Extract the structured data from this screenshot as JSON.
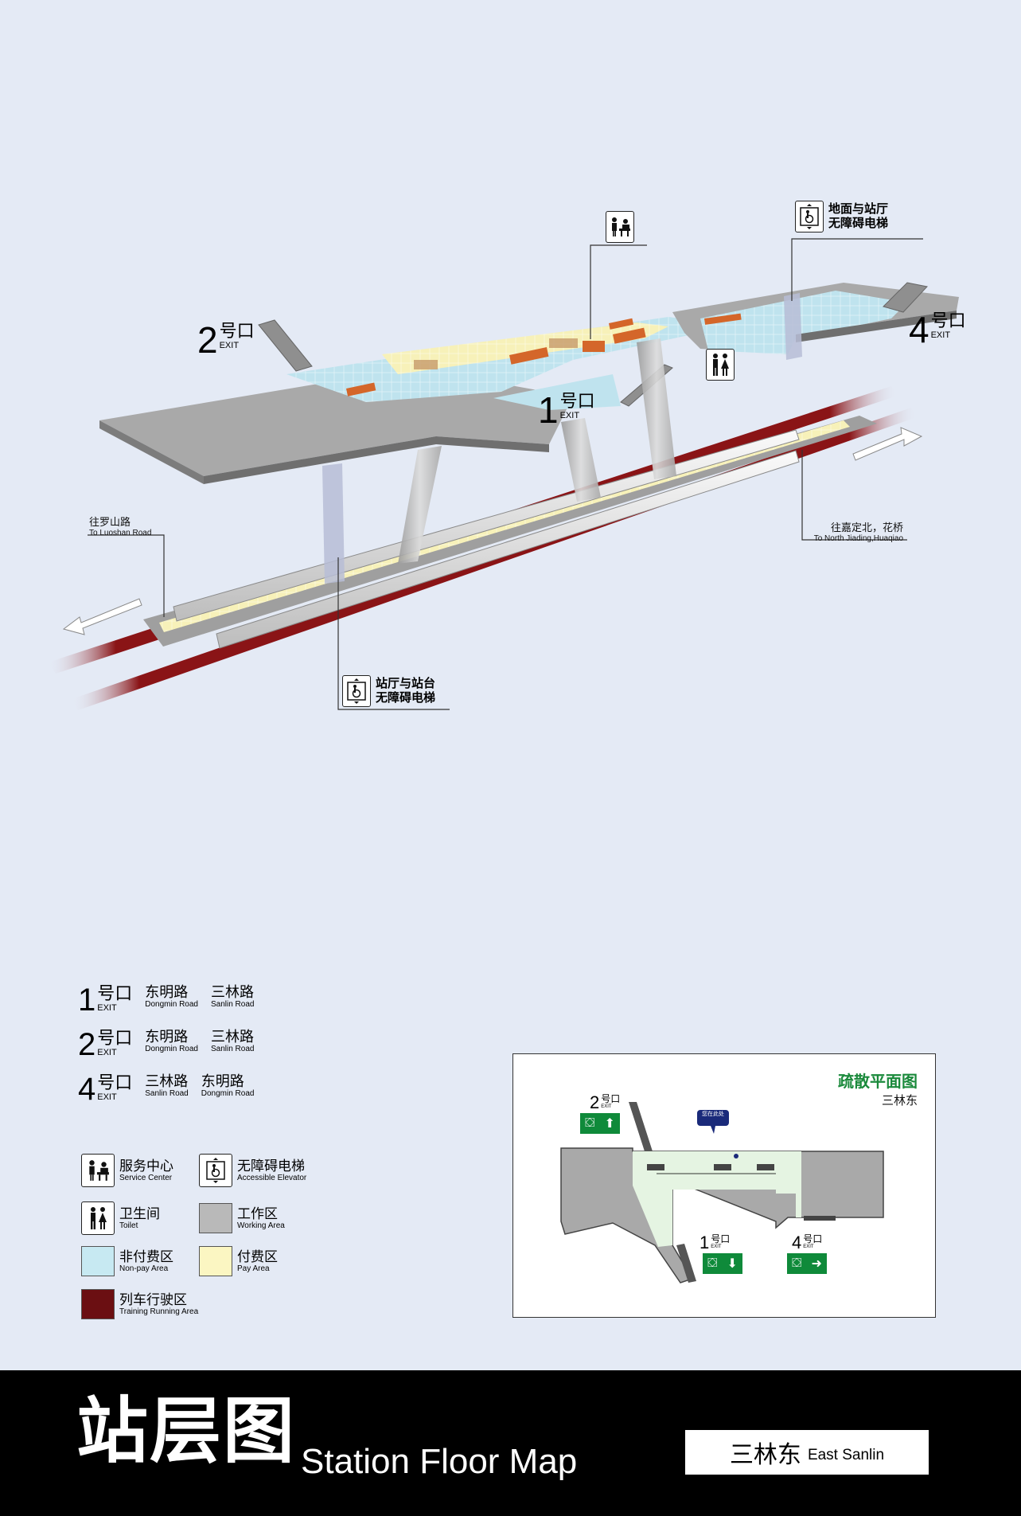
{
  "map": {
    "exits": [
      {
        "number": "2",
        "label": "号口",
        "en": "EXIT"
      },
      {
        "number": "1",
        "label": "号口",
        "en": "EXIT"
      },
      {
        "number": "4",
        "label": "号口",
        "en": "EXIT"
      }
    ],
    "callouts": {
      "service_center_icon": "service-center-icon",
      "street_elevator": {
        "line1": "地面与站厅",
        "line2": "无障碍电梯"
      },
      "platform_elevator": {
        "line1": "站厅与站台",
        "line2": "无障碍电梯"
      }
    },
    "directions": {
      "left": {
        "cn": "往罗山路",
        "en": "To Luoshan Road"
      },
      "right": {
        "cn": "往嘉定北，花桥",
        "en": "To North Jiading,Huaqiao"
      }
    }
  },
  "legend": {
    "exits": [
      {
        "number": "1",
        "label": "号口",
        "en": "EXIT",
        "roads": [
          {
            "cn": "东明路",
            "en": "Dongmin Road"
          },
          {
            "cn": "三林路",
            "en": "Sanlin Road"
          }
        ]
      },
      {
        "number": "2",
        "label": "号口",
        "en": "EXIT",
        "roads": [
          {
            "cn": "东明路",
            "en": "Dongmin Road"
          },
          {
            "cn": "三林路",
            "en": "Sanlin Road"
          }
        ]
      },
      {
        "number": "4",
        "label": "号口",
        "en": "EXIT",
        "roads": [
          {
            "cn": "三林路",
            "en": "Sanlin Road"
          },
          {
            "cn": "东明路",
            "en": "Dongmin Road"
          }
        ]
      }
    ],
    "symbols": {
      "service_center": {
        "cn": "服务中心",
        "en": "Service Center"
      },
      "accessible_elevator": {
        "cn": "无障碍电梯",
        "en": "Accessible Elevator"
      },
      "toilet": {
        "cn": "卫生间",
        "en": "Toilet"
      },
      "working_area": {
        "cn": "工作区",
        "en": "Working Area",
        "color": "#b9b9b9"
      },
      "non_pay_area": {
        "cn": "非付费区",
        "en": "Non-pay Area",
        "color": "#c7e9f2"
      },
      "pay_area": {
        "cn": "付费区",
        "en": "Pay Area",
        "color": "#fbf6c2"
      },
      "running_area": {
        "cn": "列车行驶区",
        "en": "Training Running Area",
        "color": "#6b0f12"
      }
    }
  },
  "evacuation": {
    "title": "疏散平面图",
    "station": "三林东",
    "you_are_here": "您在此处",
    "exits": [
      {
        "number": "2",
        "label": "号口",
        "en": "EXIT"
      },
      {
        "number": "1",
        "label": "号口",
        "en": "EXIT"
      },
      {
        "number": "4",
        "label": "号口",
        "en": "EXIT"
      }
    ],
    "title_color": "#1b8a3c",
    "exit_sign_color": "#0f8a3a"
  },
  "footer": {
    "title_cn": "站层图",
    "title_en": "Station Floor Map",
    "station_cn": "三林东",
    "station_en": "East Sanlin"
  },
  "colors": {
    "background": "#e4eaf5",
    "working": "#a9a9a9",
    "non_pay": "#bfe3ee",
    "pay": "#f7f1b9",
    "track": "#8a1416",
    "footer": "#000000"
  }
}
